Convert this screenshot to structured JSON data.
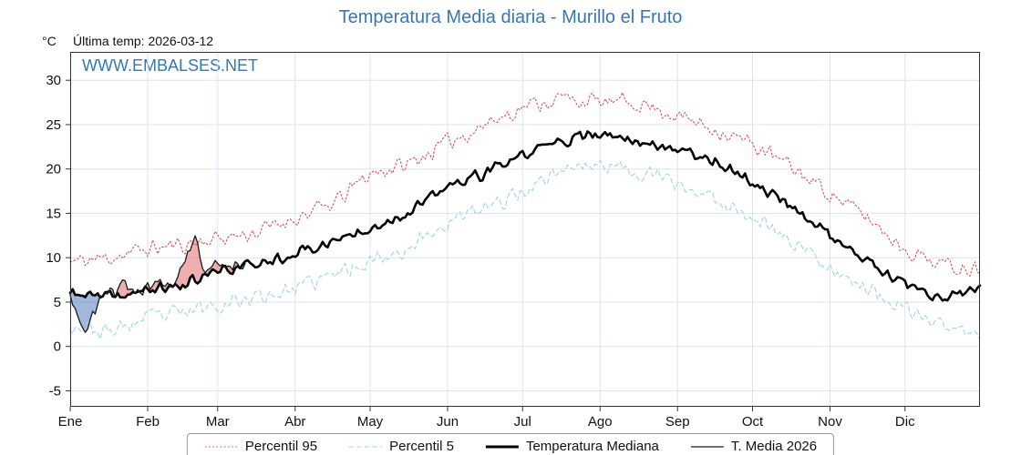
{
  "page": {
    "title": "Temperatura Media diaria - Murillo el Fruto",
    "y_unit_label": "°C",
    "last_temp_label": "Última temp: 2026-03-12",
    "watermark": "WWW.EMBALSES.NET"
  },
  "chart_data": {
    "type": "line",
    "title": "Temperatura Media diaria - Murillo el Fruto",
    "ylabel": "°C",
    "ylim": [
      -6.8,
      33.2
    ],
    "yticks": [
      -5,
      0,
      5,
      10,
      15,
      20,
      25,
      30
    ],
    "x_months": [
      "Ene",
      "Feb",
      "Mar",
      "Abr",
      "May",
      "Jun",
      "Jul",
      "Ago",
      "Sep",
      "Oct",
      "Nov",
      "Dic"
    ],
    "month_start_days": [
      0,
      31,
      59,
      90,
      120,
      151,
      181,
      212,
      243,
      273,
      304,
      334
    ],
    "days_in_year": 365,
    "grid_color": "#dde4ec",
    "axis_color": "#333333",
    "fill_above_color": "rgba(228,110,110,0.55)",
    "fill_below_color": "rgba(110,145,200,0.65)",
    "anchor_days": [
      0,
      15,
      31,
      46,
      59,
      74,
      90,
      105,
      120,
      135,
      151,
      166,
      181,
      196,
      212,
      227,
      243,
      258,
      273,
      288,
      304,
      319,
      334,
      349,
      364
    ],
    "series": [
      {
        "name": "Percentil 95",
        "color": "#d94f4f",
        "style": "dotted",
        "width": 1.1,
        "noise": 1.2,
        "seed": 11,
        "anchor_values": [
          9.5,
          10.0,
          11.0,
          11.5,
          12.2,
          12.8,
          14.5,
          16.0,
          19.5,
          20.5,
          23.0,
          25.0,
          27.0,
          28.0,
          27.5,
          27.5,
          26.0,
          24.5,
          22.8,
          20.3,
          17.3,
          14.5,
          11.0,
          9.2,
          8.8
        ]
      },
      {
        "name": "Percentil 5",
        "color": "#9fd4e5",
        "style": "dashed",
        "width": 1.1,
        "noise": 1.2,
        "seed": 23,
        "anchor_values": [
          2.5,
          1.5,
          3.2,
          3.8,
          4.8,
          5.5,
          6.5,
          8.0,
          9.8,
          11.0,
          14.0,
          15.5,
          17.5,
          20.0,
          20.5,
          19.8,
          18.3,
          16.5,
          14.8,
          12.0,
          9.0,
          6.5,
          4.0,
          2.5,
          1.0
        ]
      },
      {
        "name": "Temperatura Mediana",
        "color": "#000000",
        "style": "solid",
        "width": 2.6,
        "noise": 0.8,
        "seed": 37,
        "anchor_values": [
          6.0,
          5.5,
          6.3,
          7.0,
          8.5,
          9.3,
          10.5,
          11.8,
          13.5,
          15.0,
          18.0,
          19.5,
          21.5,
          23.2,
          23.8,
          23.2,
          22.3,
          21.0,
          18.5,
          16.0,
          12.5,
          9.5,
          6.8,
          5.2,
          6.5
        ]
      },
      {
        "name": "T. Media 2026",
        "color": "#1a1a1a",
        "style": "solid",
        "width": 1.3,
        "noise": 1.0,
        "seed": 51,
        "end_day": 70,
        "own_anchor_days": [
          0,
          3,
          6,
          10,
          14,
          18,
          22,
          26,
          31,
          35,
          40,
          45,
          50,
          53,
          56,
          59,
          62,
          65,
          68,
          70
        ],
        "anchor_values": [
          6.2,
          4.0,
          1.8,
          3.5,
          6.8,
          6.0,
          7.2,
          6.0,
          6.5,
          7.3,
          6.8,
          8.8,
          12.3,
          8.8,
          8.3,
          9.6,
          8.8,
          9.3,
          9.8,
          9.5
        ]
      }
    ],
    "legend_position": "bottom"
  }
}
